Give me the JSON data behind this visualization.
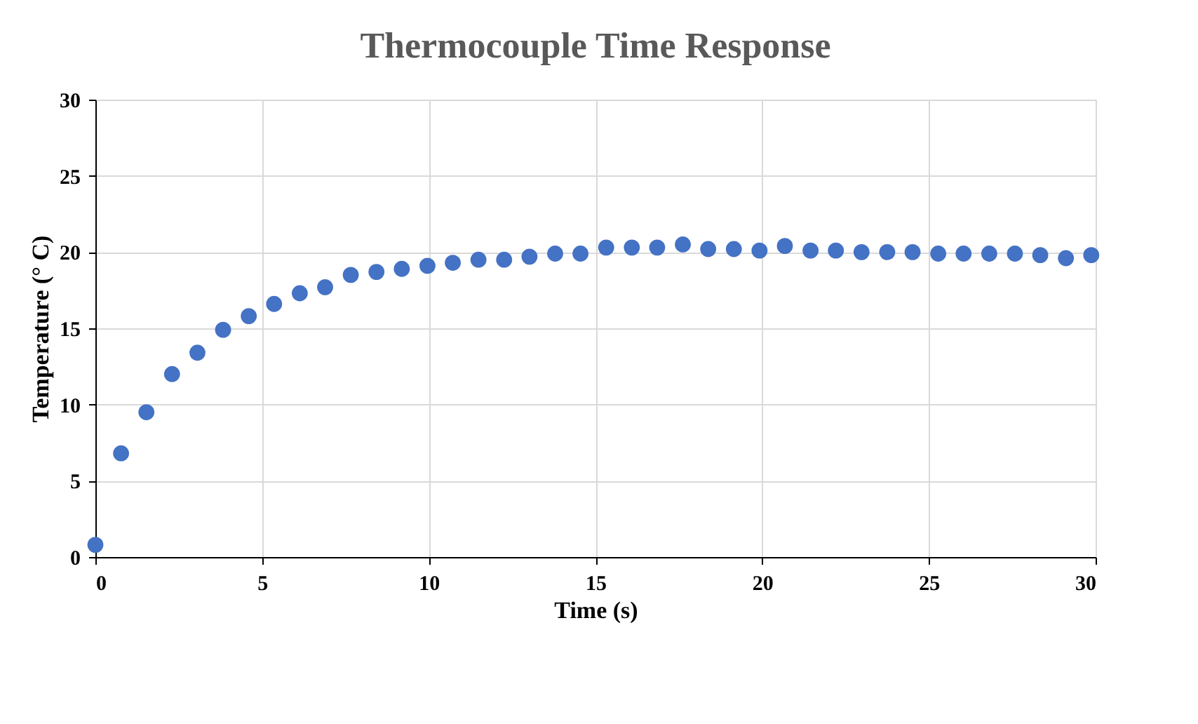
{
  "chart_data": {
    "type": "scatter",
    "title": "Thermocouple Time Response",
    "xlabel": "Time (s)",
    "ylabel": "Temperature (° C)",
    "x": [
      0,
      0.77,
      1.53,
      2.3,
      3.06,
      3.83,
      4.6,
      5.36,
      6.13,
      6.89,
      7.66,
      8.43,
      9.19,
      9.96,
      10.72,
      11.49,
      12.26,
      13.02,
      13.79,
      14.55,
      15.32,
      16.09,
      16.85,
      17.62,
      18.38,
      19.15,
      19.92,
      20.68,
      21.45,
      22.21,
      22.98,
      23.75,
      24.51,
      25.28,
      26.04,
      26.81,
      27.58,
      28.34,
      29.11,
      29.87
    ],
    "series": [
      {
        "color": "#4472c4",
        "values": [
          0.8,
          6.8,
          9.5,
          12.0,
          13.4,
          14.9,
          15.8,
          16.6,
          17.3,
          17.7,
          18.5,
          18.7,
          18.9,
          19.1,
          19.3,
          19.5,
          19.5,
          19.7,
          19.9,
          19.9,
          20.3,
          20.3,
          20.3,
          20.5,
          20.2,
          20.2,
          20.1,
          20.4,
          20.1,
          20.1,
          20.0,
          20.0,
          20.0,
          19.9,
          19.9,
          19.9,
          19.9,
          19.8,
          19.6,
          19.8
        ]
      }
    ],
    "xlim": [
      0,
      30
    ],
    "xticks": [
      0,
      5,
      10,
      15,
      20,
      25,
      30
    ],
    "ylim": [
      0,
      30
    ],
    "yticks": [
      0,
      5,
      10,
      15,
      20,
      25,
      30
    ],
    "grid": true,
    "marker": "circle"
  }
}
